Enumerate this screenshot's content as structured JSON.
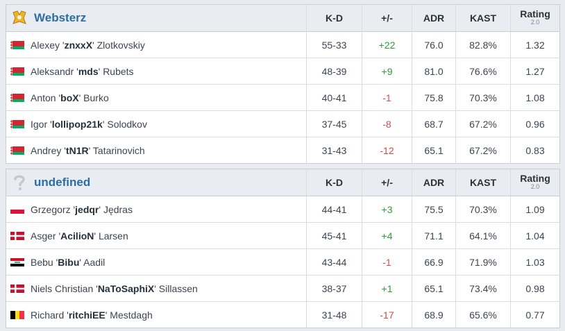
{
  "columns": {
    "kd": "K-D",
    "pm": "+/-",
    "adr": "ADR",
    "kast": "KAST",
    "rating": "Rating",
    "rating_sub": "2.0"
  },
  "teams": [
    {
      "name": "Websterz",
      "logo_icon": "websterz-logo-icon",
      "players": [
        {
          "flag": "by",
          "first": "Alexey '",
          "nick": "znxxX",
          "last": "' Zlotkovskiy",
          "kd": "55-33",
          "pm": "+22",
          "adr": "76.0",
          "kast": "82.8%",
          "rating": "1.32"
        },
        {
          "flag": "by",
          "first": "Aleksandr '",
          "nick": "mds",
          "last": "' Rubets",
          "kd": "48-39",
          "pm": "+9",
          "adr": "81.0",
          "kast": "76.6%",
          "rating": "1.27"
        },
        {
          "flag": "by",
          "first": "Anton '",
          "nick": "boX",
          "last": "' Burko",
          "kd": "40-41",
          "pm": "-1",
          "adr": "75.8",
          "kast": "70.3%",
          "rating": "1.08"
        },
        {
          "flag": "by",
          "first": "Igor '",
          "nick": "lollipop21k",
          "last": "' Solodkov",
          "kd": "37-45",
          "pm": "-8",
          "adr": "68.7",
          "kast": "67.2%",
          "rating": "0.96"
        },
        {
          "flag": "by",
          "first": "Andrey '",
          "nick": "tN1R",
          "last": "' Tatarinovich",
          "kd": "31-43",
          "pm": "-12",
          "adr": "65.1",
          "kast": "67.2%",
          "rating": "0.83"
        }
      ]
    },
    {
      "name": "undefined",
      "logo_icon": "question-mark-icon",
      "players": [
        {
          "flag": "pl",
          "first": "Grzegorz '",
          "nick": "jedqr",
          "last": "' Jędras",
          "kd": "44-41",
          "pm": "+3",
          "adr": "75.5",
          "kast": "70.3%",
          "rating": "1.09"
        },
        {
          "flag": "dk",
          "first": "Asger '",
          "nick": "AcilioN",
          "last": "' Larsen",
          "kd": "45-41",
          "pm": "+4",
          "adr": "71.1",
          "kast": "64.1%",
          "rating": "1.04"
        },
        {
          "flag": "iq",
          "first": "Bebu '",
          "nick": "Bibu",
          "last": "' Aadil",
          "kd": "43-44",
          "pm": "-1",
          "adr": "66.9",
          "kast": "71.9%",
          "rating": "1.03"
        },
        {
          "flag": "dk",
          "first": "Niels Christian '",
          "nick": "NaToSaphiX",
          "last": "' Sillassen",
          "kd": "38-37",
          "pm": "+1",
          "adr": "65.1",
          "kast": "73.4%",
          "rating": "0.98"
        },
        {
          "flag": "be",
          "first": "Richard '",
          "nick": "ritchiEE",
          "last": "' Mestdagh",
          "kd": "31-48",
          "pm": "-17",
          "adr": "68.9",
          "kast": "65.6%",
          "rating": "0.77"
        }
      ]
    }
  ],
  "colors": {
    "team_name": "#2d6da3",
    "positive": "#2e9c3b",
    "negative": "#d24b4b",
    "header_bg": "#e9edf1"
  }
}
